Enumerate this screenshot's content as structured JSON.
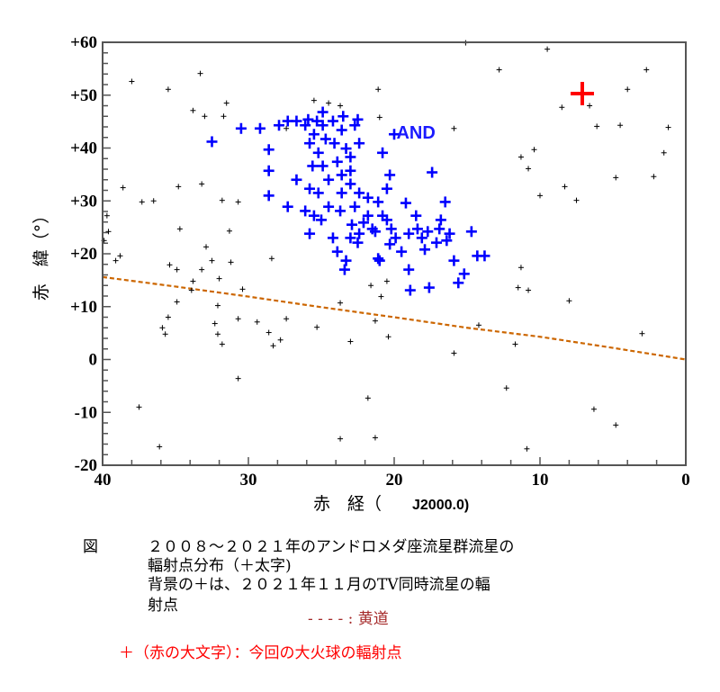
{
  "chart_data": {
    "type": "scatter",
    "xlabel_main": "赤　経（",
    "xlabel_epoch": "J2000.0)",
    "ylabel": "赤　緯（°）",
    "xlim": [
      40,
      0
    ],
    "ylim": [
      -20,
      60
    ],
    "x_reversed": true,
    "x_ticks": [
      40,
      30,
      20,
      10,
      0
    ],
    "x_tick_labels": [
      "40",
      "30",
      "20",
      "10",
      "0"
    ],
    "y_ticks": [
      60,
      50,
      40,
      30,
      20,
      10,
      0,
      -10,
      -20
    ],
    "y_tick_labels": [
      "+60",
      "+50",
      "+40",
      "+30",
      "+20",
      "+10",
      "0",
      "-10",
      "-20"
    ],
    "grid": false,
    "annotation": {
      "text": "AND",
      "x": 19.6,
      "y": 43.0,
      "color": "#1a1aff"
    },
    "series": [
      {
        "color": "#0000ff",
        "marker": "bold-plus",
        "points": [
          [
            32.5,
            41.2
          ],
          [
            30.5,
            43.7
          ],
          [
            29.2,
            43.7
          ],
          [
            28.6,
            39.7
          ],
          [
            28.6,
            35.7
          ],
          [
            27.3,
            28.9
          ],
          [
            26.7,
            34.0
          ],
          [
            26.1,
            28.1
          ],
          [
            25.8,
            23.8
          ],
          [
            25.6,
            36.6
          ],
          [
            25.2,
            31.5
          ],
          [
            23.9,
            20.4
          ],
          [
            23.3,
            18.7
          ],
          [
            23.4,
            17.0
          ],
          [
            22.5,
            22.1
          ],
          [
            21.1,
            19.1
          ],
          [
            20.5,
            32.3
          ],
          [
            20.3,
            34.9
          ],
          [
            20.0,
            42.6
          ],
          [
            20.8,
            39.1
          ],
          [
            19.0,
            23.8
          ],
          [
            19.0,
            17.0
          ],
          [
            18.5,
            27.2
          ],
          [
            17.4,
            35.4
          ],
          [
            18.1,
            23.0
          ],
          [
            17.6,
            13.6
          ],
          [
            16.9,
            24.7
          ],
          [
            16.5,
            29.8
          ],
          [
            15.9,
            18.7
          ],
          [
            15.6,
            14.5
          ],
          [
            15.2,
            16.2
          ],
          [
            14.7,
            24.2
          ],
          [
            14.3,
            19.6
          ],
          [
            13.8,
            19.6
          ],
          [
            16.4,
            22.5
          ],
          [
            19.2,
            29.6
          ],
          [
            20.5,
            26.4
          ],
          [
            21.8,
            27.2
          ],
          [
            22.7,
            28.9
          ],
          [
            23.6,
            31.5
          ],
          [
            24.5,
            34.0
          ],
          [
            25.2,
            39.1
          ],
          [
            25.5,
            42.6
          ],
          [
            26.1,
            44.3
          ],
          [
            26.7,
            45.1
          ],
          [
            27.3,
            45.1
          ],
          [
            27.9,
            44.3
          ],
          [
            25.8,
            40.9
          ],
          [
            24.9,
            44.3
          ],
          [
            24.2,
            45.1
          ],
          [
            23.6,
            43.4
          ],
          [
            22.7,
            44.3
          ],
          [
            22.4,
            40.9
          ],
          [
            23.0,
            38.3
          ],
          [
            23.9,
            37.4
          ],
          [
            24.9,
            36.6
          ],
          [
            23.6,
            34.9
          ],
          [
            23.0,
            33.2
          ],
          [
            22.4,
            31.5
          ],
          [
            21.8,
            30.6
          ],
          [
            21.1,
            29.8
          ],
          [
            20.8,
            27.2
          ],
          [
            19.9,
            23.0
          ],
          [
            20.2,
            24.7
          ],
          [
            21.5,
            24.7
          ],
          [
            22.4,
            23.8
          ],
          [
            23.0,
            23.0
          ],
          [
            24.2,
            23.0
          ],
          [
            25.0,
            26.4
          ],
          [
            25.5,
            27.2
          ],
          [
            25.8,
            32.3
          ],
          [
            24.5,
            28.9
          ],
          [
            23.7,
            28.1
          ],
          [
            22.9,
            25.5
          ],
          [
            18.4,
            24.7
          ],
          [
            17.7,
            24.2
          ],
          [
            17.1,
            22.1
          ],
          [
            16.8,
            26.4
          ],
          [
            16.2,
            23.8
          ],
          [
            17.9,
            20.8
          ],
          [
            19.5,
            20.4
          ],
          [
            20.3,
            21.8
          ],
          [
            21.3,
            24.2
          ],
          [
            22.1,
            25.9
          ],
          [
            23.0,
            35.7
          ],
          [
            23.3,
            39.9
          ],
          [
            24.1,
            40.9
          ],
          [
            24.7,
            41.7
          ],
          [
            25.3,
            45.1
          ],
          [
            25.9,
            45.4
          ],
          [
            22.5,
            45.4
          ],
          [
            23.5,
            46.0
          ],
          [
            24.9,
            46.8
          ],
          [
            28.6,
            31.0
          ],
          [
            18.9,
            13.1
          ],
          [
            21.0,
            18.7
          ]
        ]
      },
      {
        "color": "#000000",
        "marker": "small-plus",
        "points": [
          [
            38.0,
            52.6
          ],
          [
            35.5,
            51.1
          ],
          [
            33.3,
            54.1
          ],
          [
            33.8,
            47.1
          ],
          [
            33.0,
            46.0
          ],
          [
            31.7,
            46.0
          ],
          [
            31.5,
            48.5
          ],
          [
            34.8,
            32.7
          ],
          [
            36.5,
            30.0
          ],
          [
            37.3,
            29.8
          ],
          [
            38.6,
            32.5
          ],
          [
            39.7,
            27.2
          ],
          [
            39.6,
            24.2
          ],
          [
            39.9,
            22.5
          ],
          [
            39.1,
            18.7
          ],
          [
            38.8,
            19.6
          ],
          [
            34.7,
            24.7
          ],
          [
            35.4,
            17.9
          ],
          [
            34.9,
            17.0
          ],
          [
            33.8,
            14.8
          ],
          [
            33.9,
            13.1
          ],
          [
            33.2,
            17.0
          ],
          [
            32.5,
            18.7
          ],
          [
            32.0,
            15.3
          ],
          [
            31.2,
            18.4
          ],
          [
            32.1,
            10.2
          ],
          [
            31.3,
            24.3
          ],
          [
            31.8,
            30.1
          ],
          [
            33.2,
            33.2
          ],
          [
            30.7,
            29.8
          ],
          [
            30.4,
            13.3
          ],
          [
            30.7,
            7.7
          ],
          [
            29.4,
            7.1
          ],
          [
            28.6,
            5.1
          ],
          [
            28.3,
            2.6
          ],
          [
            27.8,
            3.7
          ],
          [
            27.4,
            7.7
          ],
          [
            28.4,
            19.1
          ],
          [
            27.4,
            43.7
          ],
          [
            25.5,
            49.0
          ],
          [
            24.5,
            48.5
          ],
          [
            23.7,
            48.0
          ],
          [
            21.1,
            51.1
          ],
          [
            21.0,
            45.8
          ],
          [
            20.5,
            14.8
          ],
          [
            20.9,
            11.9
          ],
          [
            23.7,
            10.7
          ],
          [
            25.3,
            6.1
          ],
          [
            23.0,
            3.4
          ],
          [
            21.3,
            7.3
          ],
          [
            21.8,
            -7.3
          ],
          [
            20.4,
            4.3
          ],
          [
            15.9,
            43.7
          ],
          [
            15.1,
            59.9
          ],
          [
            12.8,
            54.8
          ],
          [
            9.5,
            58.7
          ],
          [
            11.3,
            38.3
          ],
          [
            10.8,
            36.1
          ],
          [
            10.4,
            39.7
          ],
          [
            10.0,
            31.0
          ],
          [
            8.3,
            32.7
          ],
          [
            7.5,
            30.1
          ],
          [
            6.6,
            48.0
          ],
          [
            6.1,
            44.1
          ],
          [
            4.5,
            44.3
          ],
          [
            4.0,
            51.1
          ],
          [
            2.7,
            54.8
          ],
          [
            2.2,
            34.6
          ],
          [
            1.5,
            39.1
          ],
          [
            1.2,
            43.9
          ],
          [
            4.8,
            34.4
          ],
          [
            8.5,
            47.7
          ],
          [
            11.3,
            17.4
          ],
          [
            10.8,
            13.1
          ],
          [
            11.5,
            13.6
          ],
          [
            14.2,
            6.5
          ],
          [
            15.9,
            1.2
          ],
          [
            11.7,
            2.9
          ],
          [
            12.3,
            -5.4
          ],
          [
            10.9,
            -16.9
          ],
          [
            8.0,
            11.1
          ],
          [
            6.3,
            -9.4
          ],
          [
            4.8,
            -12.4
          ],
          [
            3.0,
            4.9
          ],
          [
            37.5,
            -9.0
          ],
          [
            36.1,
            -16.5
          ],
          [
            30.7,
            -3.6
          ],
          [
            23.7,
            -15.0
          ],
          [
            21.3,
            -14.8
          ],
          [
            35.9,
            6.0
          ],
          [
            35.5,
            8.0
          ],
          [
            35.7,
            4.8
          ],
          [
            34.9,
            10.9
          ],
          [
            32.1,
            4.8
          ],
          [
            31.8,
            2.9
          ],
          [
            32.3,
            6.8
          ],
          [
            32.9,
            21.3
          ],
          [
            21.6,
            14.0
          ]
        ]
      },
      {
        "color": "#ff0000",
        "marker": "large-plus",
        "points": [
          [
            7.1,
            50.3
          ]
        ]
      },
      {
        "color": "#cc6600",
        "marker": "dashed-line",
        "points": [
          [
            40,
            15.6
          ],
          [
            35,
            13.8
          ],
          [
            30,
            11.9
          ],
          [
            25,
            9.9
          ],
          [
            20,
            8.0
          ],
          [
            15,
            6.0
          ],
          [
            10,
            4.3
          ],
          [
            5,
            2.2
          ],
          [
            0,
            0
          ]
        ]
      }
    ]
  },
  "caption": {
    "fig_label": "図",
    "line1": "２００８～２０２１年のアンドロメダ座流星群流星の",
    "line2": "輻射点分布（＋太字)",
    "line3": "背景の＋は、２０２１年１１月のTV同時流星の輻",
    "line4": "射点",
    "ecliptic_legend": "- - - - : 黄道",
    "fireball_legend": "＋（赤の大文字）：今回の大火球の輻射点"
  }
}
